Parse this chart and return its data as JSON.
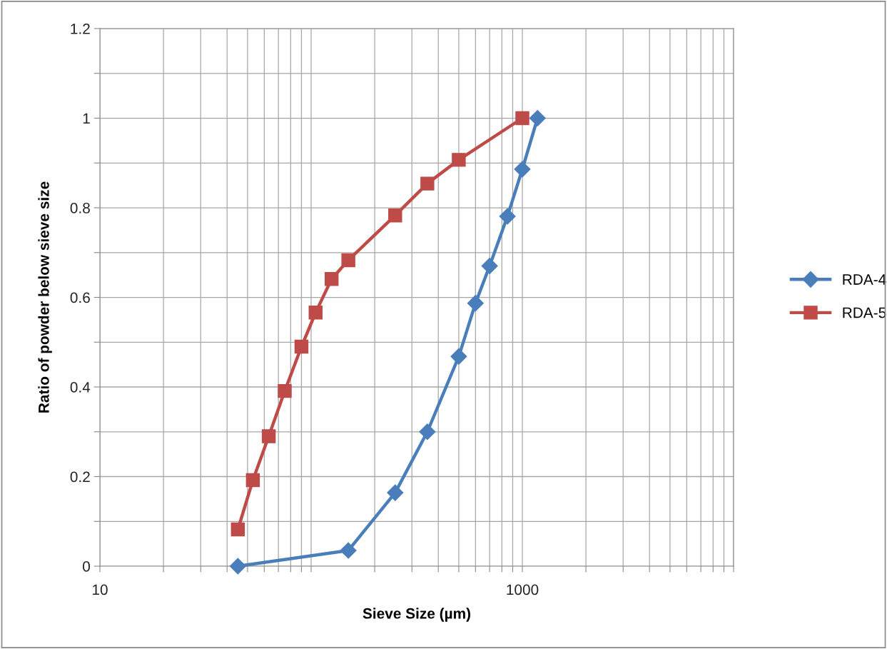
{
  "chart_data": {
    "type": "line",
    "xlabel": "Sieve Size (µm)",
    "ylabel": "Ratio of powder below sieve size",
    "log": "x",
    "xlim": [
      10,
      10000
    ],
    "ylim": [
      0,
      1.2
    ],
    "xticks": [
      10,
      {
        "value": 20,
        "label": null
      },
      {
        "value": 30,
        "label": null
      },
      {
        "value": 40,
        "label": null
      },
      {
        "value": 50,
        "label": null
      },
      {
        "value": 60,
        "label": null
      },
      {
        "value": 70,
        "label": null
      },
      {
        "value": 80,
        "label": null
      },
      {
        "value": 90,
        "label": null
      },
      {
        "value": 100,
        "label": null
      },
      {
        "value": 200,
        "label": null
      },
      {
        "value": 300,
        "label": null
      },
      {
        "value": 400,
        "label": null
      },
      {
        "value": 500,
        "label": null
      },
      {
        "value": 600,
        "label": null
      },
      {
        "value": 700,
        "label": null
      },
      {
        "value": 800,
        "label": null
      },
      {
        "value": 900,
        "label": null
      },
      1000,
      {
        "value": 2000,
        "label": null
      },
      {
        "value": 3000,
        "label": null
      },
      {
        "value": 4000,
        "label": null
      },
      {
        "value": 5000,
        "label": null
      },
      {
        "value": 6000,
        "label": null
      },
      {
        "value": 7000,
        "label": null
      },
      {
        "value": 8000,
        "label": null
      },
      {
        "value": 9000,
        "label": null
      },
      {
        "value": 10000,
        "label": null
      }
    ],
    "yticks": [
      0,
      {
        "value": 0.1,
        "label": null
      },
      0.2,
      {
        "value": 0.3,
        "label": null
      },
      0.4,
      {
        "value": 0.5,
        "label": null
      },
      0.6,
      {
        "value": 0.7,
        "label": null
      },
      0.8,
      {
        "value": 0.9,
        "label": null
      },
      1,
      {
        "value": 1.1,
        "label": null
      },
      1.2
    ],
    "grid": true,
    "legend": "right",
    "series": [
      {
        "name": "RDA-4",
        "color": "#4a7ebb",
        "marker": "diamond",
        "line_style": "solid",
        "x": [
          45,
          150,
          250,
          355,
          500,
          600,
          700,
          850,
          1000,
          1180
        ],
        "values": [
          0,
          0.035,
          0.164,
          0.3,
          0.468,
          0.587,
          0.67,
          0.781,
          0.886,
          1.0
        ]
      },
      {
        "name": "RDA-5",
        "color": "#be4b48",
        "marker": "square",
        "line_style": "solid",
        "x": [
          45,
          53,
          63,
          75,
          90,
          105,
          125,
          150,
          250,
          355,
          500,
          1000
        ],
        "values": [
          0.082,
          0.192,
          0.29,
          0.391,
          0.49,
          0.566,
          0.641,
          0.683,
          0.783,
          0.854,
          0.907,
          1.0
        ]
      }
    ]
  }
}
